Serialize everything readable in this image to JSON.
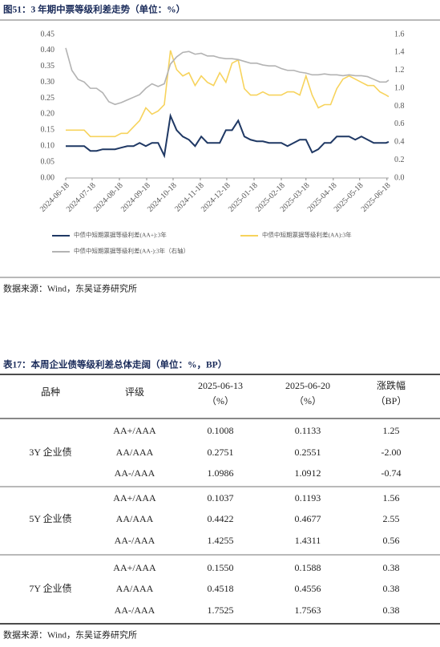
{
  "figure_title": "图51：3 年期中票等级利差走势（单位：%）",
  "chart_data": {
    "type": "line",
    "x": [
      "2024-06-18",
      "2024-06-25",
      "2024-07-02",
      "2024-07-09",
      "2024-07-16",
      "2024-07-23",
      "2024-07-30",
      "2024-08-06",
      "2024-08-13",
      "2024-08-20",
      "2024-08-27",
      "2024-09-03",
      "2024-09-10",
      "2024-09-17",
      "2024-09-24",
      "2024-10-01",
      "2024-10-08",
      "2024-10-15",
      "2024-10-22",
      "2024-10-29",
      "2024-11-05",
      "2024-11-12",
      "2024-11-19",
      "2024-11-26",
      "2024-12-03",
      "2024-12-10",
      "2024-12-17",
      "2024-12-24",
      "2024-12-31",
      "2025-01-07",
      "2025-01-14",
      "2025-01-21",
      "2025-01-28",
      "2025-02-04",
      "2025-02-11",
      "2025-02-18",
      "2025-02-25",
      "2025-03-04",
      "2025-03-11",
      "2025-03-18",
      "2025-03-25",
      "2025-04-01",
      "2025-04-08",
      "2025-04-15",
      "2025-04-22",
      "2025-04-29",
      "2025-05-06",
      "2025-05-13",
      "2025-05-20",
      "2025-05-27",
      "2025-06-03",
      "2025-06-10",
      "2025-06-17",
      "2025-06-20"
    ],
    "xlim": [
      "2024-06-18",
      "2025-06-20"
    ],
    "xticks": [
      "2024-06-18",
      "2024-07-18",
      "2024-08-18",
      "2024-09-18",
      "2024-10-18",
      "2024-11-18",
      "2024-12-18",
      "2025-01-18",
      "2025-02-18",
      "2025-03-18",
      "2025-04-18",
      "2025-05-18",
      "2025-06-18"
    ],
    "ylim": [
      0,
      0.45
    ],
    "yticks": [
      {
        "value": 0,
        "label": "0.00"
      },
      {
        "value": 0.05,
        "label": "0.05"
      },
      {
        "value": 0.1,
        "label": "0.10"
      },
      {
        "value": 0.15,
        "label": "0.15"
      },
      {
        "value": 0.2,
        "label": "0.20"
      },
      {
        "value": 0.25,
        "label": "0.25"
      },
      {
        "value": 0.3,
        "label": "0.30"
      },
      {
        "value": 0.35,
        "label": "0.35"
      },
      {
        "value": 0.4,
        "label": "0.40"
      },
      {
        "value": 0.45,
        "label": "0.45"
      }
    ],
    "y2lim": [
      0,
      1.6
    ],
    "y2ticks": [
      {
        "value": 0,
        "label": "0.0"
      },
      {
        "value": 0.2,
        "label": "0.2"
      },
      {
        "value": 0.4,
        "label": "0.4"
      },
      {
        "value": 0.6,
        "label": "0.6"
      },
      {
        "value": 0.8,
        "label": "0.8"
      },
      {
        "value": 1,
        "label": "1.0"
      },
      {
        "value": 1.2,
        "label": "1.2"
      },
      {
        "value": 1.4,
        "label": "1.4"
      },
      {
        "value": 1.6,
        "label": "1.6"
      }
    ],
    "series": [
      {
        "name": "中债中短期票据等级利差(AA+):3年",
        "color": "#1f3864",
        "values": [
          0.1,
          0.1,
          0.1,
          0.1,
          0.085,
          0.085,
          0.09,
          0.09,
          0.09,
          0.095,
          0.1,
          0.1,
          0.11,
          0.1,
          0.11,
          0.11,
          0.07,
          0.195,
          0.15,
          0.13,
          0.12,
          0.1,
          0.13,
          0.11,
          0.11,
          0.11,
          0.15,
          0.15,
          0.18,
          0.13,
          0.12,
          0.115,
          0.115,
          0.11,
          0.11,
          0.11,
          0.1,
          0.11,
          0.12,
          0.12,
          0.08,
          0.09,
          0.11,
          0.11,
          0.13,
          0.13,
          0.13,
          0.12,
          0.13,
          0.12,
          0.11,
          0.11,
          0.11,
          0.1133
        ]
      },
      {
        "name": "中债中短期票据等级利差(AA):3年",
        "color": "#f7d35c",
        "values": [
          0.15,
          0.15,
          0.15,
          0.15,
          0.13,
          0.13,
          0.13,
          0.13,
          0.13,
          0.14,
          0.14,
          0.16,
          0.18,
          0.22,
          0.2,
          0.21,
          0.23,
          0.4,
          0.34,
          0.32,
          0.33,
          0.29,
          0.32,
          0.3,
          0.29,
          0.33,
          0.3,
          0.36,
          0.37,
          0.28,
          0.26,
          0.26,
          0.27,
          0.26,
          0.26,
          0.26,
          0.27,
          0.27,
          0.26,
          0.32,
          0.26,
          0.22,
          0.23,
          0.23,
          0.28,
          0.31,
          0.32,
          0.31,
          0.3,
          0.29,
          0.29,
          0.27,
          0.26,
          0.2551
        ]
      },
      {
        "name": "中债中短期票据等级利差(AA-):3年（右轴）",
        "color": "#b3b3b3",
        "axis": "y2",
        "values": [
          1.45,
          1.2,
          1.1,
          1.07,
          1.0,
          1.0,
          0.95,
          0.85,
          0.82,
          0.84,
          0.87,
          0.9,
          0.93,
          1.0,
          1.05,
          1.02,
          1.05,
          1.27,
          1.35,
          1.4,
          1.41,
          1.38,
          1.39,
          1.36,
          1.36,
          1.34,
          1.33,
          1.33,
          1.32,
          1.3,
          1.28,
          1.28,
          1.26,
          1.25,
          1.25,
          1.22,
          1.2,
          1.2,
          1.18,
          1.17,
          1.15,
          1.15,
          1.16,
          1.15,
          1.15,
          1.14,
          1.15,
          1.14,
          1.14,
          1.13,
          1.1,
          1.07,
          1.07,
          1.0912
        ]
      }
    ]
  },
  "figure_source": "数据来源：Wind，东吴证券研究所",
  "table_title": "表17：本周企业债等级利差总体走阔（单位：%，BP）",
  "table": {
    "header": [
      [
        "品种"
      ],
      [
        "评级"
      ],
      [
        "2025-06-13",
        "（%）"
      ],
      [
        "2025-06-20",
        "（%）"
      ],
      [
        "涨跌幅",
        "（BP）"
      ]
    ],
    "groups": [
      {
        "name": "3Y 企业债",
        "rows": [
          [
            "AA+/AAA",
            "0.1008",
            "0.1133",
            "1.25"
          ],
          [
            "AA/AAA",
            "0.2751",
            "0.2551",
            "-2.00"
          ],
          [
            "AA-/AAA",
            "1.0986",
            "1.0912",
            "-0.74"
          ]
        ]
      },
      {
        "name": "5Y 企业债",
        "rows": [
          [
            "AA+/AAA",
            "0.1037",
            "0.1193",
            "1.56"
          ],
          [
            "AA/AAA",
            "0.4422",
            "0.4677",
            "2.55"
          ],
          [
            "AA-/AAA",
            "1.4255",
            "1.4311",
            "0.56"
          ]
        ]
      },
      {
        "name": "7Y 企业债",
        "rows": [
          [
            "AA+/AAA",
            "0.1550",
            "0.1588",
            "0.38"
          ],
          [
            "AA/AAA",
            "0.4518",
            "0.4556",
            "0.38"
          ],
          [
            "AA-/AAA",
            "1.7525",
            "1.7563",
            "0.38"
          ]
        ]
      }
    ]
  },
  "table_source": "数据来源：Wind，东吴证券研究所"
}
